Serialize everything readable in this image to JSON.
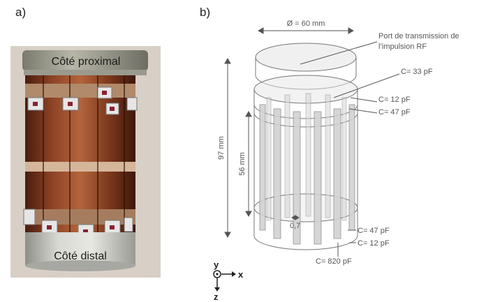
{
  "panels": {
    "a": "a)",
    "b": "b)"
  },
  "photo": {
    "proximal_label": "Côté proximal",
    "distal_label": "Côté distal"
  },
  "diagram": {
    "diameter_label": "Ø = 60 mm",
    "port_label_line1": "Port de transmission de",
    "port_label_line2": "l’impulsion RF",
    "height_total_label": "97 mm",
    "height_inner_label": "56 mm",
    "gap_label": "0,7",
    "capacitors": {
      "c33": "C= 33 pF",
      "c12_top": "C= 12 pF",
      "c47_top": "C= 47 pF",
      "c47_bottom": "C= 47 pF",
      "c12_bottom": "C= 12 pF",
      "c820": "C= 820 pF"
    },
    "axes": {
      "y": "y",
      "x": "x",
      "z": "z"
    }
  },
  "colors": {
    "copper": "#8a3f22",
    "silver": "#c9c9c4",
    "strip_fill": "#cfcfcf",
    "line": "#666666"
  }
}
